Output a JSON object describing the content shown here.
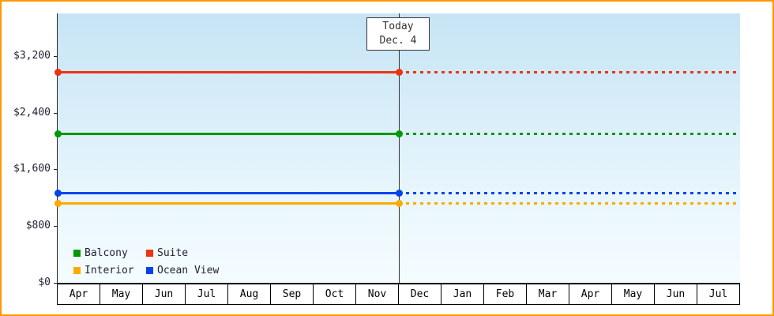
{
  "chart_data": {
    "type": "line",
    "title": "",
    "x_categories": [
      "Apr",
      "May",
      "Jun",
      "Jul",
      "Aug",
      "Sep",
      "Oct",
      "Nov",
      "Dec",
      "Jan",
      "Feb",
      "Mar",
      "Apr",
      "May",
      "Jun",
      "Jul"
    ],
    "today_index": 8,
    "today_label": {
      "line1": "Today",
      "line2": "Dec. 4"
    },
    "y_ticks": [
      {
        "label": "$0",
        "value": 0
      },
      {
        "label": "$800",
        "value": 800
      },
      {
        "label": "$1,600",
        "value": 1600
      },
      {
        "label": "$2,400",
        "value": 2400
      },
      {
        "label": "$3,200",
        "value": 3200
      }
    ],
    "ylim": [
      0,
      3800
    ],
    "line_style": {
      "before_today": "solid",
      "after_today": "dotted"
    },
    "series": [
      {
        "name": "Suite",
        "color": "#ee3311",
        "value": 2980
      },
      {
        "name": "Balcony",
        "color": "#009900",
        "value": 2110
      },
      {
        "name": "Ocean View",
        "color": "#0044ee",
        "value": 1270
      },
      {
        "name": "Interior",
        "color": "#ffaa00",
        "value": 1130
      }
    ],
    "legend_order": [
      "Balcony",
      "Suite",
      "Interior",
      "Ocean View"
    ],
    "colors": {
      "frame_border": "#ff9900",
      "axis": "#222222",
      "today_line": "#333333"
    }
  }
}
